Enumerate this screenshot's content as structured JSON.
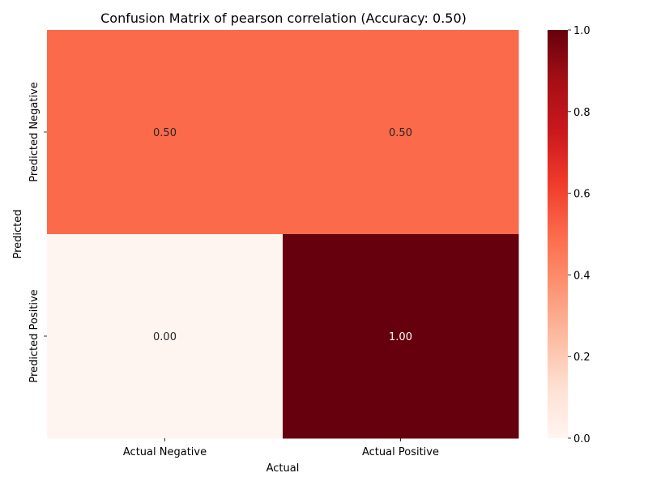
{
  "chart_data": {
    "type": "heatmap",
    "title": "Confusion Matrix of pearson correlation (Accuracy: 0.50)",
    "xlabel": "Actual",
    "ylabel": "Predicted",
    "x_categories": [
      "Actual Negative",
      "Actual Positive"
    ],
    "y_categories": [
      "Predicted Negative",
      "Predicted Positive"
    ],
    "values": [
      [
        0.5,
        0.5
      ],
      [
        0.0,
        1.0
      ]
    ],
    "cell_labels": [
      [
        "0.50",
        "0.50"
      ],
      [
        "0.00",
        "1.00"
      ]
    ],
    "colorbar": {
      "range": [
        0,
        1
      ],
      "ticks": [
        0.0,
        0.2,
        0.4,
        0.6,
        0.8,
        1.0
      ],
      "tick_labels": [
        "0.0",
        "0.2",
        "0.4",
        "0.6",
        "0.8",
        "1.0"
      ]
    },
    "colormap": "Reds",
    "grid": false
  }
}
